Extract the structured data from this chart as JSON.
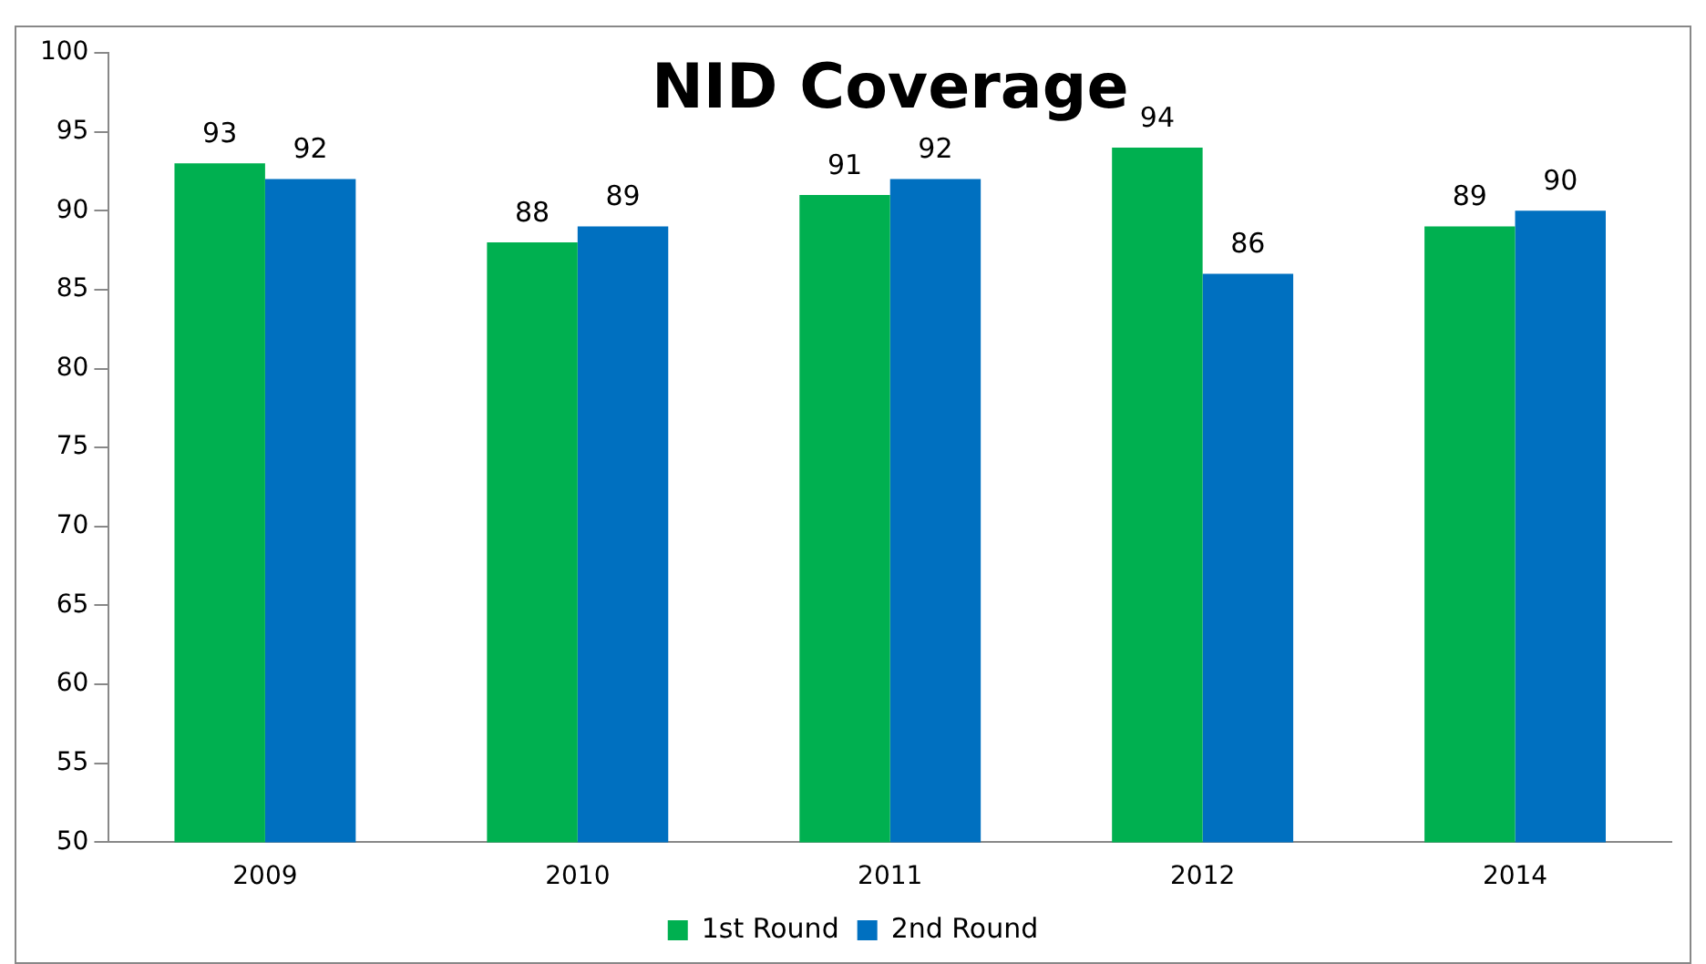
{
  "chart_data": {
    "type": "bar",
    "title": "NID Coverage",
    "categories": [
      "2009",
      "2010",
      "2011",
      "2012",
      "2014"
    ],
    "series": [
      {
        "name": "1st Round",
        "color": "#00b050",
        "values": [
          93,
          88,
          91,
          94,
          89
        ]
      },
      {
        "name": "2nd Round",
        "color": "#0070c0",
        "values": [
          92,
          89,
          92,
          86,
          90
        ]
      }
    ],
    "ylim": [
      50,
      100
    ],
    "yticks": [
      50,
      55,
      60,
      65,
      70,
      75,
      80,
      85,
      90,
      95,
      100
    ],
    "grid": false,
    "legend": "bottom",
    "data_labels": true
  }
}
